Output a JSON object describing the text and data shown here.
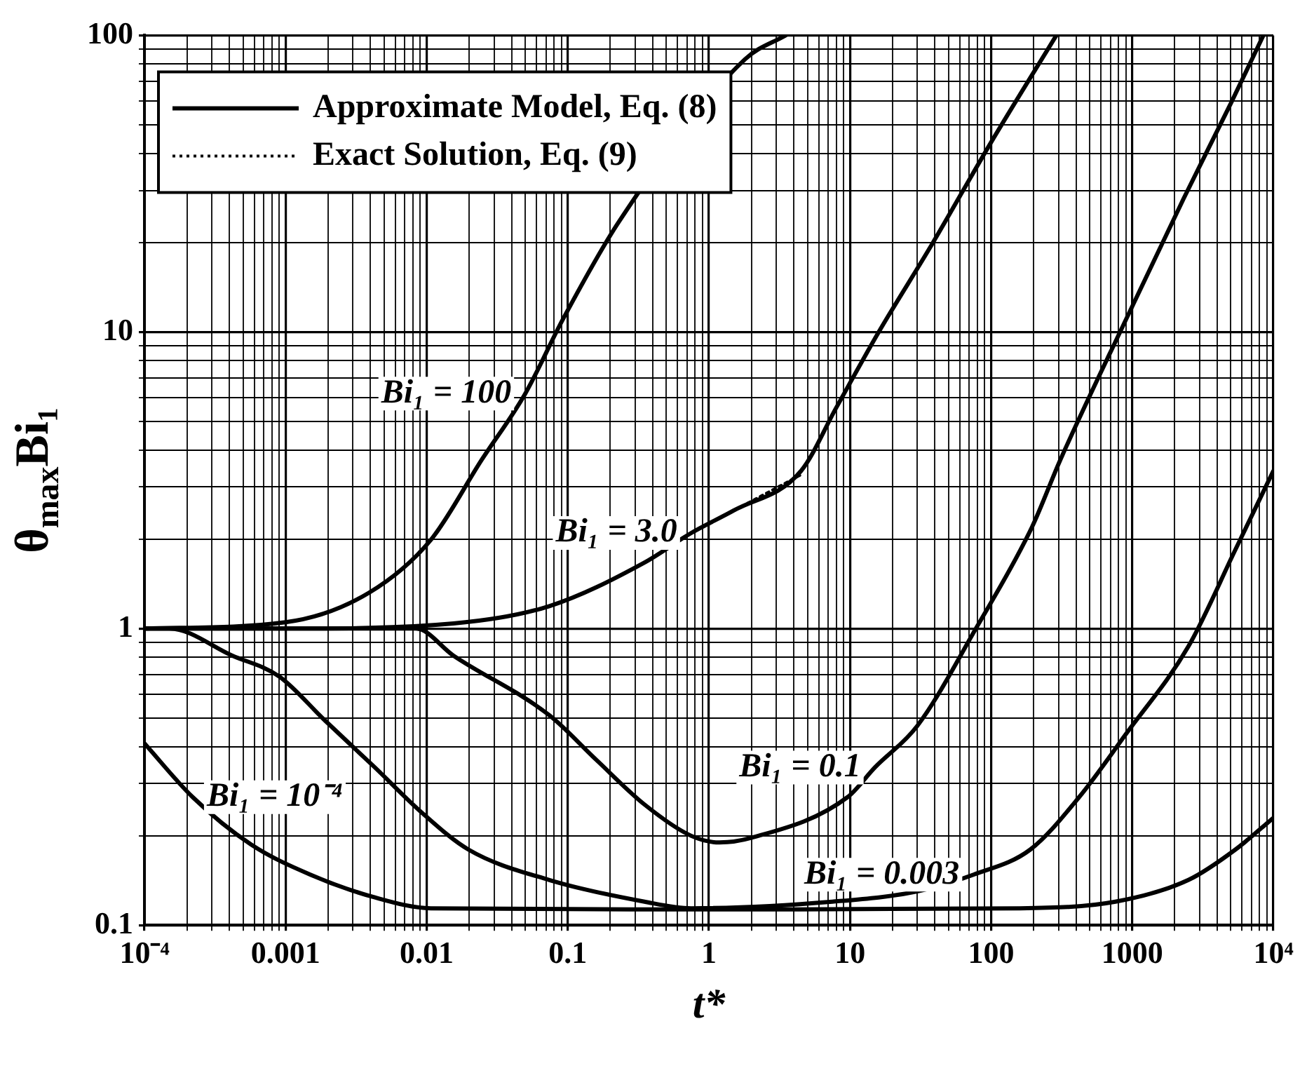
{
  "chart_data": {
    "type": "line",
    "xlabel": "t*",
    "ylabel": "θ$_{max}$Bi₁",
    "log": "xy",
    "grid": true,
    "legend": "top left",
    "marker": "none",
    "xlim": [
      0.0001,
      10000
    ],
    "ylim": [
      0.1,
      100
    ],
    "xticks": [
      {
        "value": 0.0001,
        "label": "10⁻⁴"
      },
      0.001,
      0.01,
      0.1,
      1,
      10,
      100,
      1000,
      {
        "value": 10000,
        "label": "10⁴"
      }
    ],
    "yticks": [
      0.1,
      1,
      10,
      100
    ],
    "series": [
      {
        "name": "Approximate Model, Eq. (8)",
        "color": "#000000",
        "line_style": "solid",
        "x": [
          0.0001,
          0.001,
          0.0039,
          0.0107,
          0.0245,
          0.05,
          0.093,
          0.23,
          1.8,
          3.5
        ],
        "values": [
          1,
          1.05,
          1.32,
          1.99,
          3.7,
          6.2,
          11.1,
          23.5,
          83,
          100
        ]
      },
      {
        "color": "#000000",
        "line_style": "solid",
        "x": [
          0.0001,
          0.001,
          0.0155,
          0.074,
          0.35,
          0.75,
          1.5,
          4.5,
          8,
          16,
          38,
          100,
          290
        ],
        "values": [
          1,
          1.0,
          1.04,
          1.19,
          1.67,
          2.1,
          2.5,
          3.4,
          5.56,
          10,
          19.7,
          43.6,
          100
        ]
      },
      {
        "color": "#000000",
        "line_style": "solid",
        "x": [
          0.0001,
          0.001,
          0.0084,
          0.0155,
          0.074,
          0.16,
          0.35,
          0.75,
          1.19,
          2.0,
          9.6,
          15,
          30,
          78,
          195,
          309,
          910,
          2300,
          5000,
          8500
        ],
        "values": [
          1,
          1,
          1,
          0.81,
          0.51,
          0.36,
          0.255,
          0.2,
          0.19,
          0.197,
          0.27,
          0.34,
          0.47,
          1.0,
          2.2,
          3.7,
          11.1,
          28,
          59,
          100
        ]
      },
      {
        "color": "#000000",
        "line_style": "solid",
        "x": [
          0.0001,
          0.00015,
          0.00042,
          0.0009,
          0.0019,
          0.0043,
          0.0092,
          0.0197,
          0.074,
          0.35,
          0.75,
          7.5,
          30,
          75,
          190,
          420,
          900,
          2500,
          5400,
          10000
        ],
        "values": [
          1,
          1,
          0.81,
          0.69,
          0.49,
          0.34,
          0.24,
          0.18,
          0.142,
          0.12,
          0.114,
          0.12,
          0.13,
          0.148,
          0.18,
          0.27,
          0.44,
          0.87,
          1.85,
          3.4
        ]
      },
      {
        "color": "#000000",
        "line_style": "solid",
        "x": [
          0.0001,
          0.00022,
          0.00057,
          0.0015,
          0.0043,
          0.0107,
          1,
          160,
          760,
          2500,
          5400,
          10000
        ],
        "values": [
          0.41,
          0.27,
          0.187,
          0.148,
          0.124,
          0.114,
          0.113,
          0.114,
          0.12,
          0.142,
          0.18,
          0.23
        ]
      },
      {
        "name": "Exact Solution, Eq. (9)",
        "color": "#000000",
        "line_style": "dotted",
        "x": [
          0.35,
          0.75,
          1.5,
          4.5
        ],
        "values": [
          1.67,
          2.1,
          2.5,
          3.3
        ]
      }
    ],
    "annotations": [
      {
        "text": "Bi₁ = 100",
        "x": 0.05,
        "y": 6.2
      },
      {
        "text": "Bi₁ = 3.0",
        "x": 0.75,
        "y": 2.1
      },
      {
        "text": "Bi₁ = 0.1",
        "x": 15,
        "y": 0.34
      },
      {
        "text": "Bi₁ = 0.003",
        "x": 75,
        "y": 0.148
      },
      {
        "text": "Bi₁ = 10⁻⁴",
        "x": 0.00022,
        "y": 0.27
      }
    ]
  }
}
